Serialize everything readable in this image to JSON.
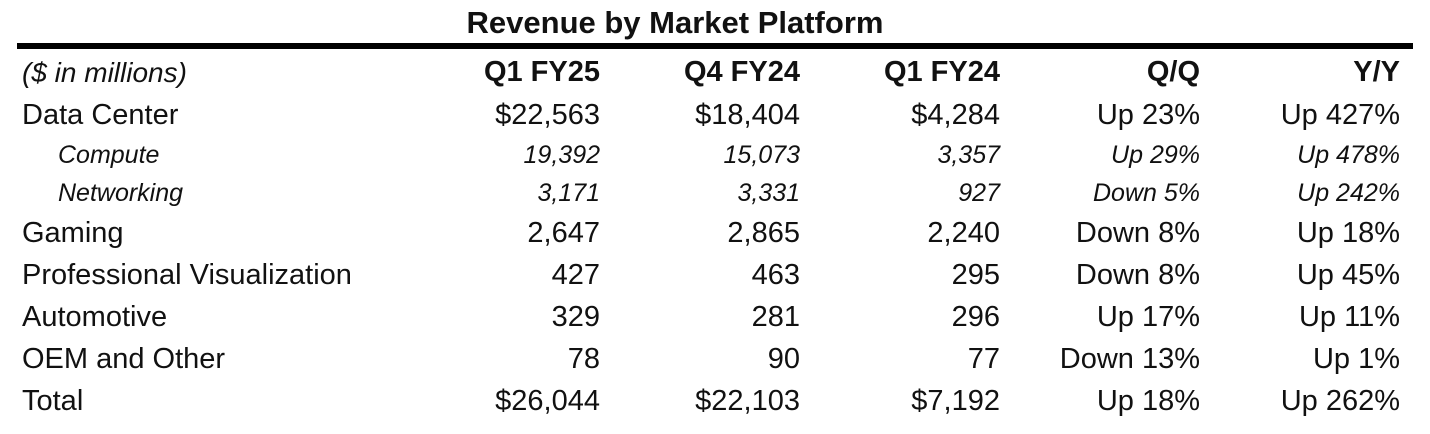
{
  "title": "Revenue by Market Platform",
  "colors": {
    "text": "#111111",
    "rule": "#000000",
    "background": "#ffffff"
  },
  "chart_data": {
    "type": "table",
    "title": "Revenue by Market Platform",
    "units_note": "($ in millions)",
    "columns": [
      "($ in millions)",
      "Q1 FY25",
      "Q4 FY24",
      "Q1 FY24",
      "Q/Q",
      "Y/Y"
    ],
    "rows": [
      {
        "label": "Data Center",
        "style": "main",
        "cells": [
          "$22,563",
          "$18,404",
          "$4,284",
          "Up 23%",
          "Up 427%"
        ]
      },
      {
        "label": "Compute",
        "style": "sub",
        "cells": [
          "19,392",
          "15,073",
          "3,357",
          "Up 29%",
          "Up 478%"
        ]
      },
      {
        "label": "Networking",
        "style": "sub",
        "cells": [
          "3,171",
          "3,331",
          "927",
          "Down 5%",
          "Up 242%"
        ]
      },
      {
        "label": "Gaming",
        "style": "main",
        "cells": [
          "2,647",
          "2,865",
          "2,240",
          "Down 8%",
          "Up 18%"
        ]
      },
      {
        "label": "Professional Visualization",
        "style": "main",
        "cells": [
          "427",
          "463",
          "295",
          "Down 8%",
          "Up 45%"
        ]
      },
      {
        "label": "Automotive",
        "style": "main",
        "cells": [
          "329",
          "281",
          "296",
          "Up 17%",
          "Up 11%"
        ]
      },
      {
        "label": "OEM and Other",
        "style": "main",
        "cells": [
          "78",
          "90",
          "77",
          "Down 13%",
          "Up 1%"
        ]
      },
      {
        "label": "Total",
        "style": "main",
        "cells": [
          "$26,044",
          "$22,103",
          "$7,192",
          "Up 18%",
          "Up 262%"
        ]
      }
    ]
  }
}
